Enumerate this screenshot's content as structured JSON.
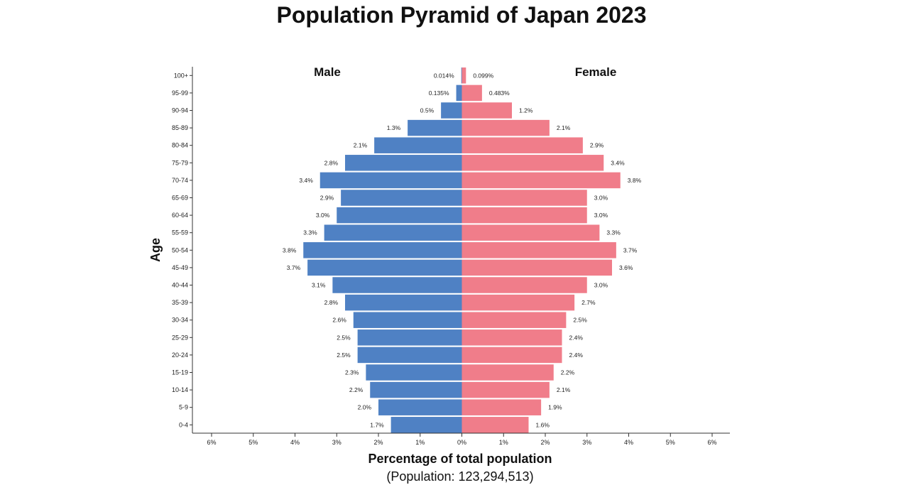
{
  "chart_data": {
    "type": "bar",
    "title": "Population Pyramid of Japan 2023",
    "ylabel": "Age",
    "xlabel": "Percentage of total population",
    "subtitle": "(Population: 123,294,513)",
    "side_labels": {
      "male": "Male",
      "female": "Female"
    },
    "xlim": [
      -6,
      6
    ],
    "xticks": [
      -6,
      -5,
      -4,
      -3,
      -2,
      -1,
      0,
      1,
      2,
      3,
      4,
      5,
      6
    ],
    "xtick_labels": [
      "6%",
      "5%",
      "4%",
      "3%",
      "2%",
      "1%",
      "0%",
      "1%",
      "2%",
      "3%",
      "4%",
      "5%",
      "6%"
    ],
    "categories": [
      "100+",
      "95-99",
      "90-94",
      "85-89",
      "80-84",
      "75-79",
      "70-74",
      "65-69",
      "60-64",
      "55-59",
      "50-54",
      "45-49",
      "40-44",
      "35-39",
      "30-34",
      "25-29",
      "20-24",
      "15-19",
      "10-14",
      "5-9",
      "0-4"
    ],
    "series": [
      {
        "name": "Male",
        "color": "#4f81c4",
        "values": [
          0.014,
          0.135,
          0.5,
          1.3,
          2.1,
          2.8,
          3.4,
          2.9,
          3.0,
          3.3,
          3.8,
          3.7,
          3.1,
          2.8,
          2.6,
          2.5,
          2.5,
          2.3,
          2.2,
          2.0,
          1.7
        ],
        "labels": [
          "0.014%",
          "0.135%",
          "0.5%",
          "1.3%",
          "2.1%",
          "2.8%",
          "3.4%",
          "2.9%",
          "3.0%",
          "3.3%",
          "3.8%",
          "3.7%",
          "3.1%",
          "2.8%",
          "2.6%",
          "2.5%",
          "2.5%",
          "2.3%",
          "2.2%",
          "2.0%",
          "1.7%"
        ]
      },
      {
        "name": "Female",
        "color": "#f07d8a",
        "values": [
          0.099,
          0.483,
          1.2,
          2.1,
          2.9,
          3.4,
          3.8,
          3.0,
          3.0,
          3.3,
          3.7,
          3.6,
          3.0,
          2.7,
          2.5,
          2.4,
          2.4,
          2.2,
          2.1,
          1.9,
          1.6
        ],
        "labels": [
          "0.099%",
          "0.483%",
          "1.2%",
          "2.1%",
          "2.9%",
          "3.4%",
          "3.8%",
          "3.0%",
          "3.0%",
          "3.3%",
          "3.7%",
          "3.6%",
          "3.0%",
          "2.7%",
          "2.5%",
          "2.4%",
          "2.4%",
          "2.2%",
          "2.1%",
          "1.9%",
          "1.6%"
        ]
      }
    ],
    "grid": false,
    "legend": "none"
  }
}
